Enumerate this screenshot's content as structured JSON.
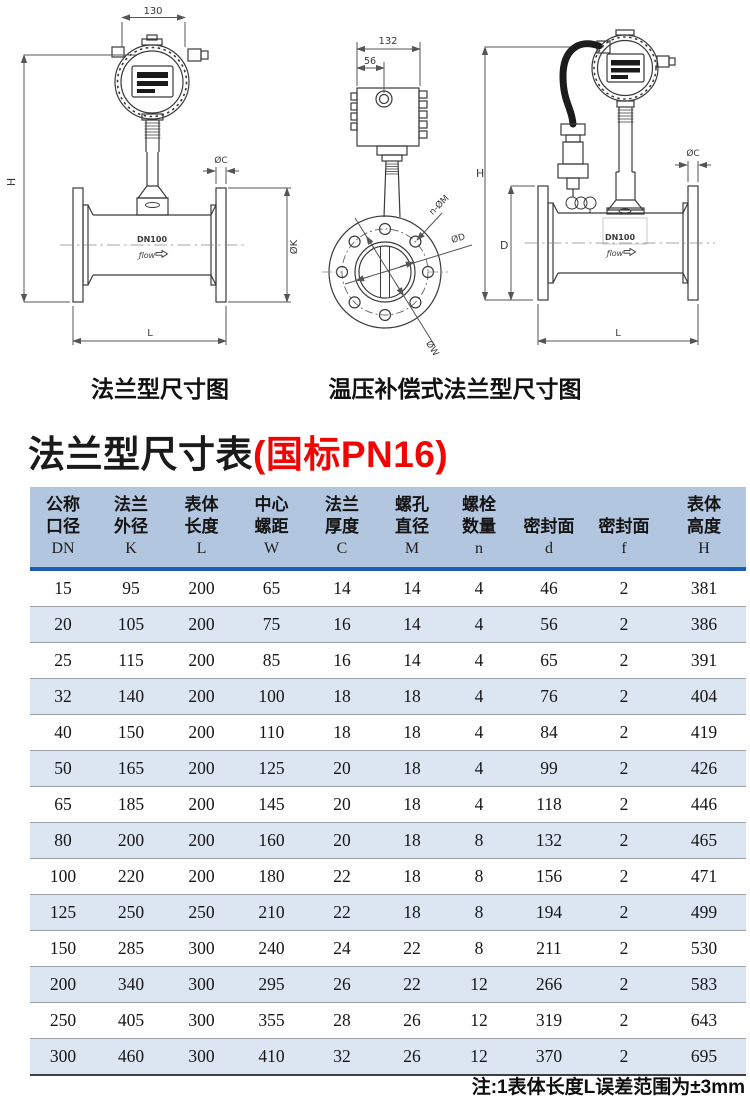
{
  "diagrams": {
    "left": {
      "caption": "法兰型尺寸图",
      "labels": {
        "top_width": "130",
        "height": "H",
        "flange_thickness": "ØC",
        "flange_diameter": "ØK",
        "length": "L",
        "pipe_marking": "DN100",
        "flow_marking": "ƒlow"
      }
    },
    "middle": {
      "labels": {
        "top_width": "132",
        "entry_offset": "56",
        "bolt_holes": "n-ØM",
        "bore_diameter": "ØD",
        "bolt_circle": "ØW"
      }
    },
    "right": {
      "caption": "温压补偿式法兰型尺寸图",
      "labels": {
        "height": "H",
        "flange_od": "D",
        "flange_thickness": "ØC",
        "length": "L",
        "pipe_marking": "DN100",
        "flow_marking": "ƒlow"
      }
    }
  },
  "table": {
    "title": "法兰型尺寸表",
    "title_highlight": "(国标PN16)",
    "columns": [
      {
        "l1": "公称",
        "l2": "口径",
        "code": "DN"
      },
      {
        "l1": "法兰",
        "l2": "外径",
        "code": "K"
      },
      {
        "l1": "表体",
        "l2": "长度",
        "code": "L"
      },
      {
        "l1": "中心",
        "l2": "螺距",
        "code": "W"
      },
      {
        "l1": "法兰",
        "l2": "厚度",
        "code": "C"
      },
      {
        "l1": "螺孔",
        "l2": "直径",
        "code": "M"
      },
      {
        "l1": "螺栓",
        "l2": "数量",
        "code": "n"
      },
      {
        "l1": "",
        "l2": "密封面",
        "code": "d"
      },
      {
        "l1": "",
        "l2": "密封面",
        "code": "f"
      },
      {
        "l1": "表体",
        "l2": "高度",
        "code": "H"
      }
    ],
    "rows": [
      [
        "15",
        "95",
        "200",
        "65",
        "14",
        "14",
        "4",
        "46",
        "2",
        "381"
      ],
      [
        "20",
        "105",
        "200",
        "75",
        "16",
        "14",
        "4",
        "56",
        "2",
        "386"
      ],
      [
        "25",
        "115",
        "200",
        "85",
        "16",
        "14",
        "4",
        "65",
        "2",
        "391"
      ],
      [
        "32",
        "140",
        "200",
        "100",
        "18",
        "18",
        "4",
        "76",
        "2",
        "404"
      ],
      [
        "40",
        "150",
        "200",
        "110",
        "18",
        "18",
        "4",
        "84",
        "2",
        "419"
      ],
      [
        "50",
        "165",
        "200",
        "125",
        "20",
        "18",
        "4",
        "99",
        "2",
        "426"
      ],
      [
        "65",
        "185",
        "200",
        "145",
        "20",
        "18",
        "4",
        "118",
        "2",
        "446"
      ],
      [
        "80",
        "200",
        "200",
        "160",
        "20",
        "18",
        "8",
        "132",
        "2",
        "465"
      ],
      [
        "100",
        "220",
        "200",
        "180",
        "22",
        "18",
        "8",
        "156",
        "2",
        "471"
      ],
      [
        "125",
        "250",
        "250",
        "210",
        "22",
        "18",
        "8",
        "194",
        "2",
        "499"
      ],
      [
        "150",
        "285",
        "300",
        "240",
        "24",
        "22",
        "8",
        "211",
        "2",
        "530"
      ],
      [
        "200",
        "340",
        "300",
        "295",
        "26",
        "22",
        "12",
        "266",
        "2",
        "583"
      ],
      [
        "250",
        "405",
        "300",
        "355",
        "28",
        "26",
        "12",
        "319",
        "2",
        "643"
      ],
      [
        "300",
        "460",
        "300",
        "410",
        "32",
        "26",
        "12",
        "370",
        "2",
        "695"
      ]
    ],
    "note": "注:1表体长度L误差范围为±3mm"
  },
  "colors": {
    "header_bg": "#b3c6e0",
    "row_alt_bg": "#dce6f3",
    "divider_blue": "#1a5fb0",
    "title_red": "#f00505"
  }
}
